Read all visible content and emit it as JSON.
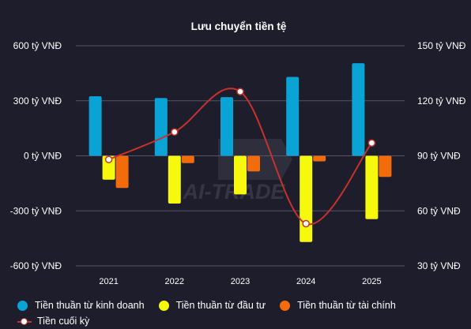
{
  "chart_data": {
    "type": "bar",
    "title": "Lưu chuyển tiền tệ",
    "categories": [
      "2021",
      "2022",
      "2023",
      "2024",
      "2025"
    ],
    "series": [
      {
        "name": "Tiền thuần từ kinh doanh",
        "type": "bar",
        "axis": "left",
        "color": "#0aa3d6",
        "values": [
          325,
          315,
          320,
          430,
          505
        ]
      },
      {
        "name": "Tiền thuần từ đầu tư",
        "type": "bar",
        "axis": "left",
        "color": "#f6f80d",
        "values": [
          -130,
          -260,
          -210,
          -470,
          -345
        ]
      },
      {
        "name": "Tiền thuần từ tài chính",
        "type": "bar",
        "axis": "left",
        "color": "#f36c0b",
        "values": [
          -175,
          -40,
          -85,
          -30,
          -115
        ]
      },
      {
        "name": "Tiền cuối kỳ",
        "type": "line",
        "axis": "right",
        "color": "#c8322c",
        "values": [
          88,
          103,
          125,
          53,
          97
        ]
      }
    ],
    "y_left": {
      "ticks": [
        "600 tỷ VNĐ",
        "300 tỷ VNĐ",
        "0 tỷ VNĐ",
        "-300 tỷ VNĐ",
        "-600 tỷ VNĐ"
      ],
      "range": [
        -600,
        600
      ]
    },
    "y_right": {
      "ticks": [
        "150 tỷ VNĐ",
        "120 tỷ VNĐ",
        "90 tỷ VNĐ",
        "60 tỷ VNĐ",
        "30 tỷ VNĐ"
      ],
      "range": [
        30,
        150
      ]
    },
    "grid": true,
    "legend_position": "bottom-left",
    "watermark": "AI-TRADE"
  },
  "colors": {
    "background": "#1e1d2b",
    "grid": "#55556a",
    "text": "#ffffff"
  }
}
